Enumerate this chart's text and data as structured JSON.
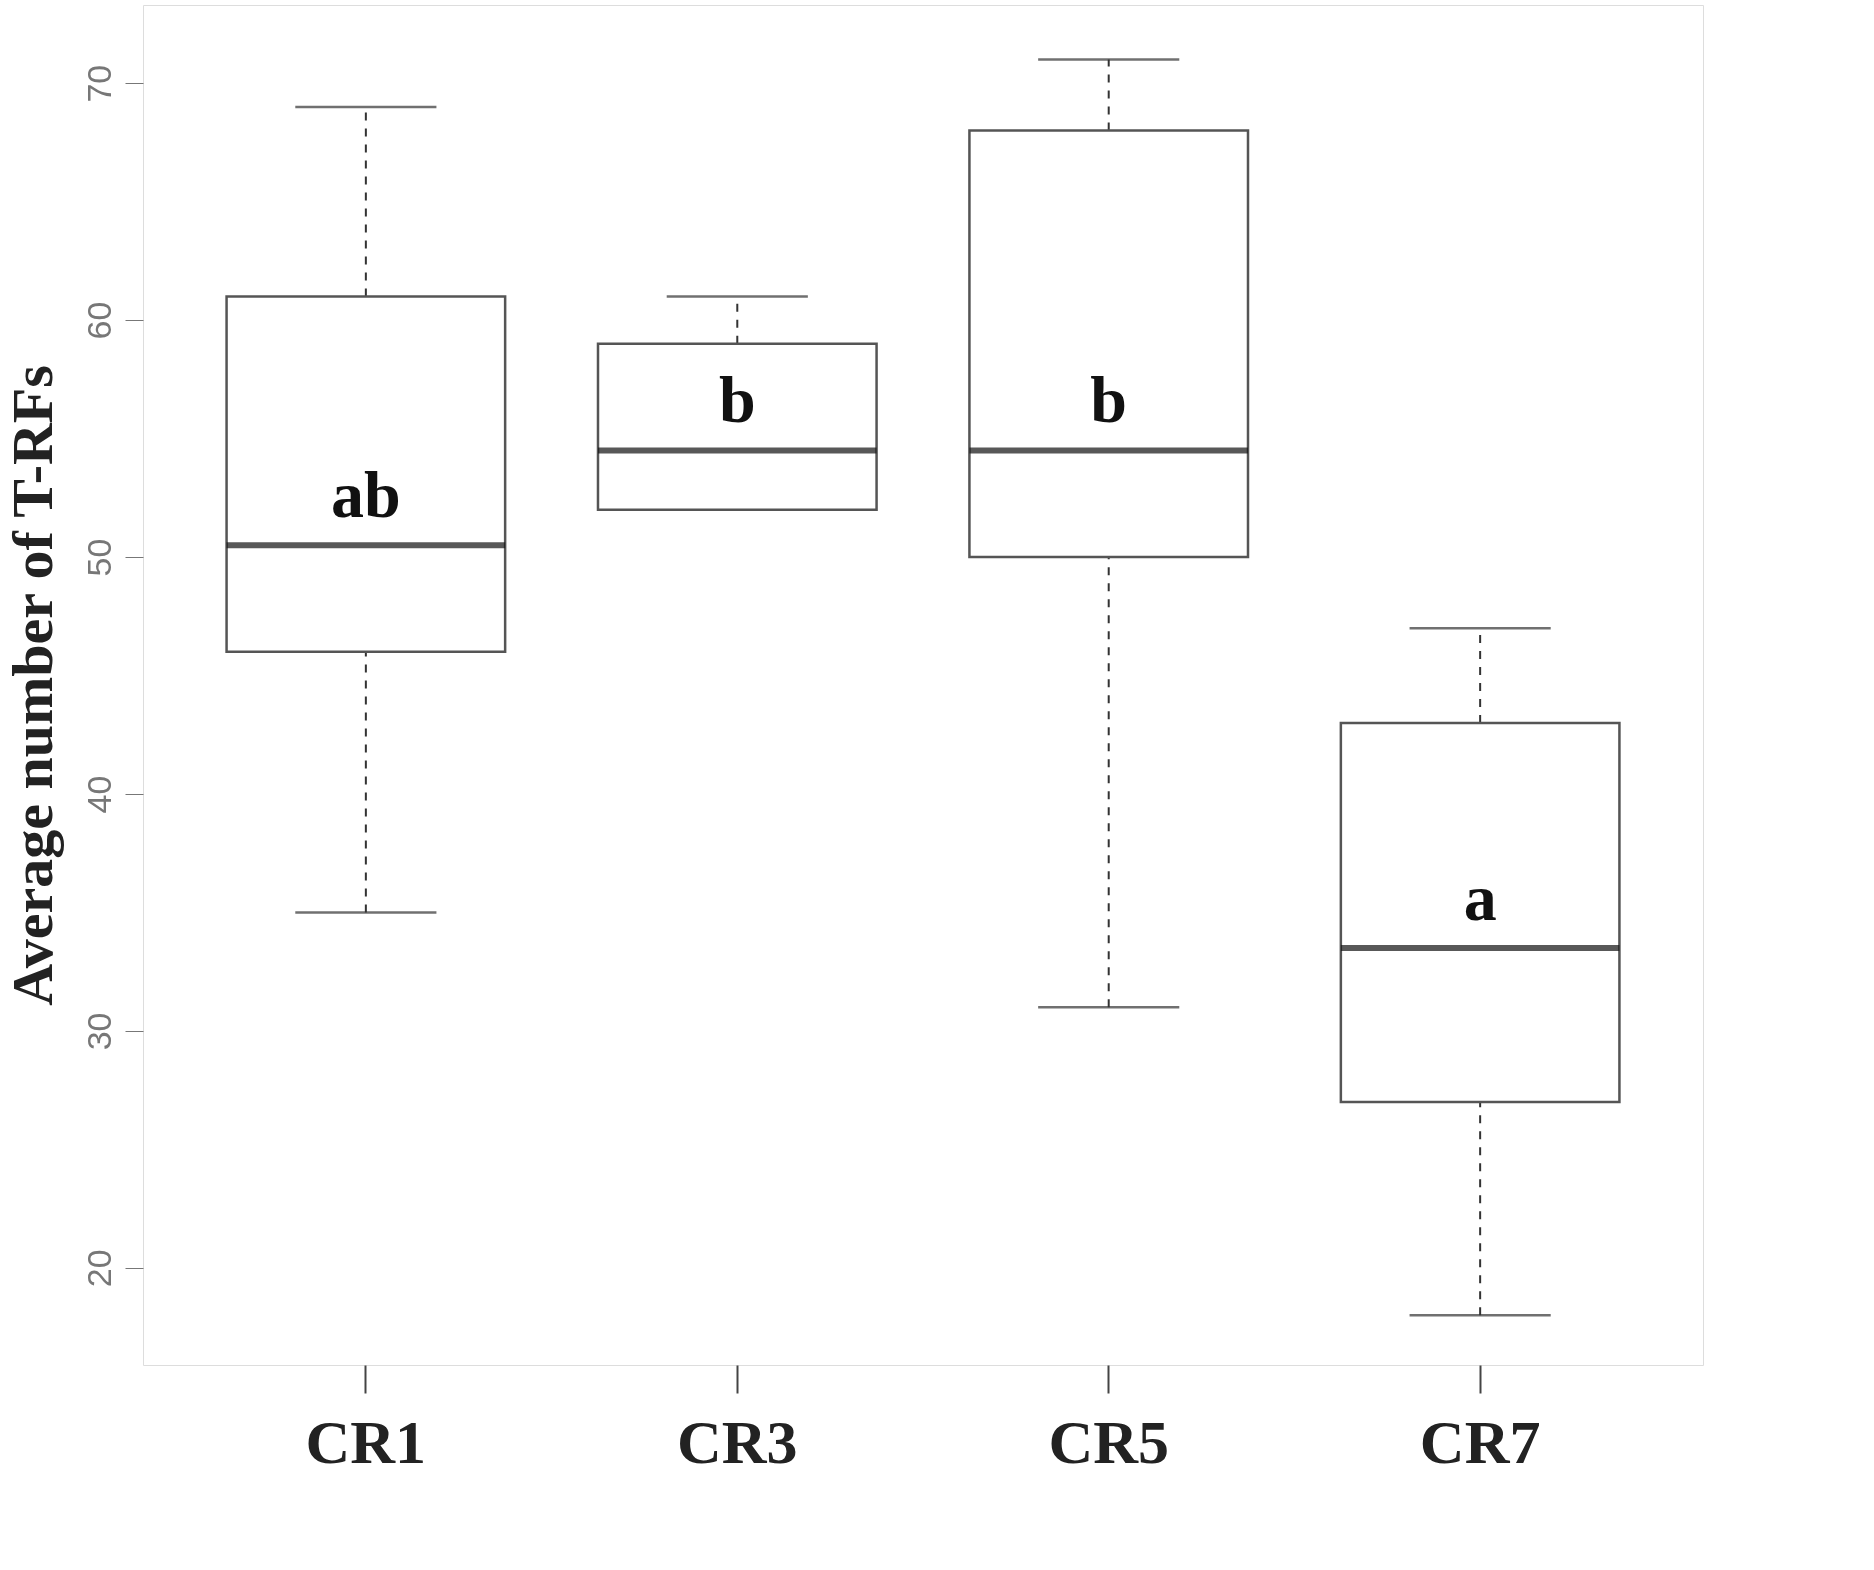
{
  "chart_data": {
    "type": "box",
    "ylabel": "Average number of T-RFs",
    "categories": [
      "CR1",
      "CR3",
      "CR5",
      "CR7"
    ],
    "boxes": [
      {
        "low": 35,
        "q1": 46,
        "median": 50.5,
        "q3": 61,
        "high": 69
      },
      {
        "low": 52,
        "q1": 52,
        "median": 54.5,
        "q3": 59,
        "high": 61
      },
      {
        "low": 31,
        "q1": 50,
        "median": 54.5,
        "q3": 68,
        "high": 71
      },
      {
        "low": 18,
        "q1": 27,
        "median": 33.5,
        "q3": 43,
        "high": 47
      }
    ],
    "ylim": [
      15.9,
      73.3
    ],
    "yticks": [
      20,
      30,
      40,
      50,
      60,
      70
    ],
    "grid": false,
    "annotations": [
      "ab",
      "b",
      "b",
      "a"
    ]
  }
}
